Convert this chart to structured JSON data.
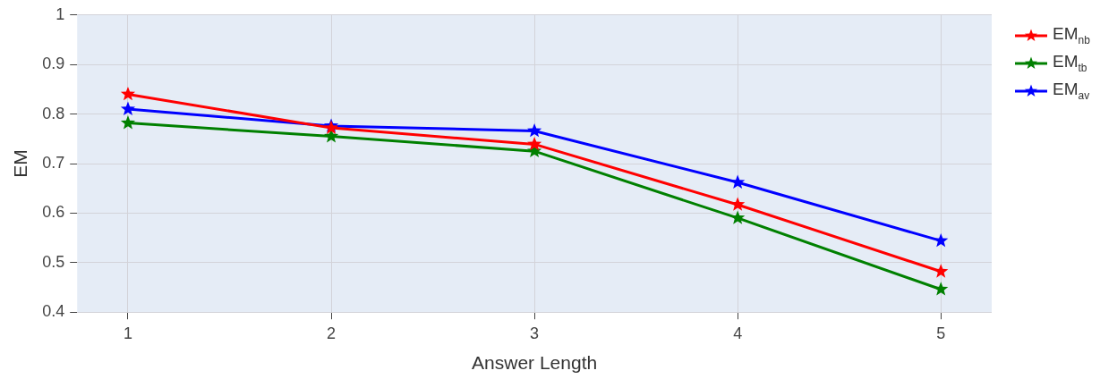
{
  "chart_data": {
    "type": "line",
    "xlabel": "Answer Length",
    "ylabel": "EM",
    "x": [
      1,
      2,
      3,
      4,
      5
    ],
    "series": [
      {
        "name": "EM$_{nb}$",
        "color": "#ff0000",
        "values": [
          0.84,
          0.772,
          0.739,
          0.617,
          0.482
        ]
      },
      {
        "name": "EM$_{tb}$",
        "color": "#008000",
        "values": [
          0.782,
          0.755,
          0.725,
          0.59,
          0.446
        ]
      },
      {
        "name": "EM$_{av}$",
        "color": "#0000ff",
        "values": [
          0.81,
          0.776,
          0.766,
          0.662,
          0.544
        ]
      }
    ],
    "xlim": [
      0.75,
      5.25
    ],
    "xticks": [
      1,
      2,
      3,
      4,
      5
    ],
    "ylim": [
      0.4,
      1
    ],
    "yticks": [
      0.4,
      0.5,
      0.6,
      0.7,
      0.8,
      0.9,
      1
    ],
    "grid": true,
    "legend": "top right",
    "marker": "star",
    "line_style": "solid"
  }
}
